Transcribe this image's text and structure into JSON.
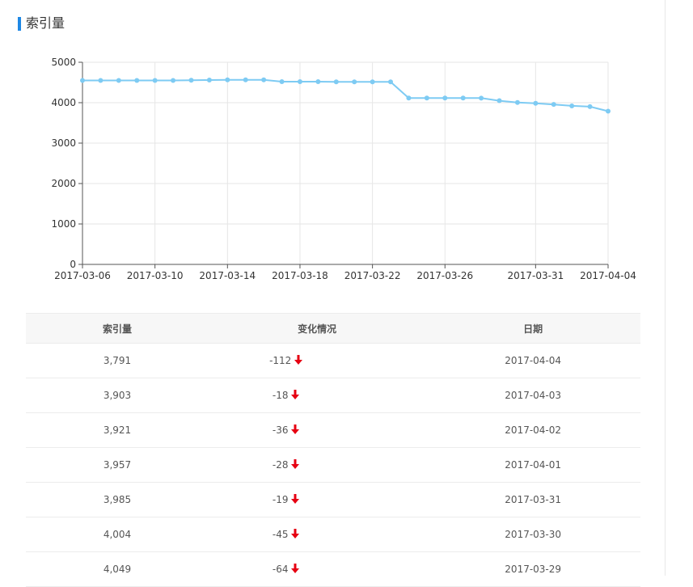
{
  "header": {
    "title": "索引量"
  },
  "colors": {
    "line": "#7ecbf3",
    "accent": "#1e88e5",
    "down_arrow": "#e60012"
  },
  "chart_data": {
    "type": "line",
    "title": "",
    "xlabel": "",
    "ylabel": "",
    "ylim": [
      0,
      5000
    ],
    "yticks": [
      "0",
      "1000",
      "2000",
      "3000",
      "4000",
      "5000"
    ],
    "grid": true,
    "x_tick_labels": [
      "2017-03-06",
      "2017-03-10",
      "2017-03-14",
      "2017-03-18",
      "2017-03-22",
      "2017-03-26",
      "2017-03-31",
      "2017-04-04"
    ],
    "x": [
      "2017-03-06",
      "2017-03-07",
      "2017-03-08",
      "2017-03-09",
      "2017-03-10",
      "2017-03-11",
      "2017-03-12",
      "2017-03-13",
      "2017-03-14",
      "2017-03-15",
      "2017-03-16",
      "2017-03-17",
      "2017-03-18",
      "2017-03-19",
      "2017-03-20",
      "2017-03-21",
      "2017-03-22",
      "2017-03-23",
      "2017-03-24",
      "2017-03-25",
      "2017-03-26",
      "2017-03-27",
      "2017-03-28",
      "2017-03-29",
      "2017-03-30",
      "2017-03-31",
      "2017-04-01",
      "2017-04-02",
      "2017-04-03",
      "2017-04-04"
    ],
    "series": [
      {
        "values": [
          4550,
          4550,
          4550,
          4550,
          4550,
          4550,
          4555,
          4560,
          4565,
          4565,
          4565,
          4520,
          4520,
          4520,
          4515,
          4515,
          4515,
          4515,
          4115,
          4115,
          4115,
          4115,
          4113,
          4049,
          4004,
          3985,
          3957,
          3921,
          3903,
          3791
        ]
      }
    ]
  },
  "table": {
    "headers": [
      "索引量",
      "变化情况",
      "日期"
    ],
    "rows": [
      {
        "count": "3,791",
        "change": "-112",
        "date": "2017-04-04"
      },
      {
        "count": "3,903",
        "change": "-18",
        "date": "2017-04-03"
      },
      {
        "count": "3,921",
        "change": "-36",
        "date": "2017-04-02"
      },
      {
        "count": "3,957",
        "change": "-28",
        "date": "2017-04-01"
      },
      {
        "count": "3,985",
        "change": "-19",
        "date": "2017-03-31"
      },
      {
        "count": "4,004",
        "change": "-45",
        "date": "2017-03-30"
      },
      {
        "count": "4,049",
        "change": "-64",
        "date": "2017-03-29"
      }
    ]
  }
}
